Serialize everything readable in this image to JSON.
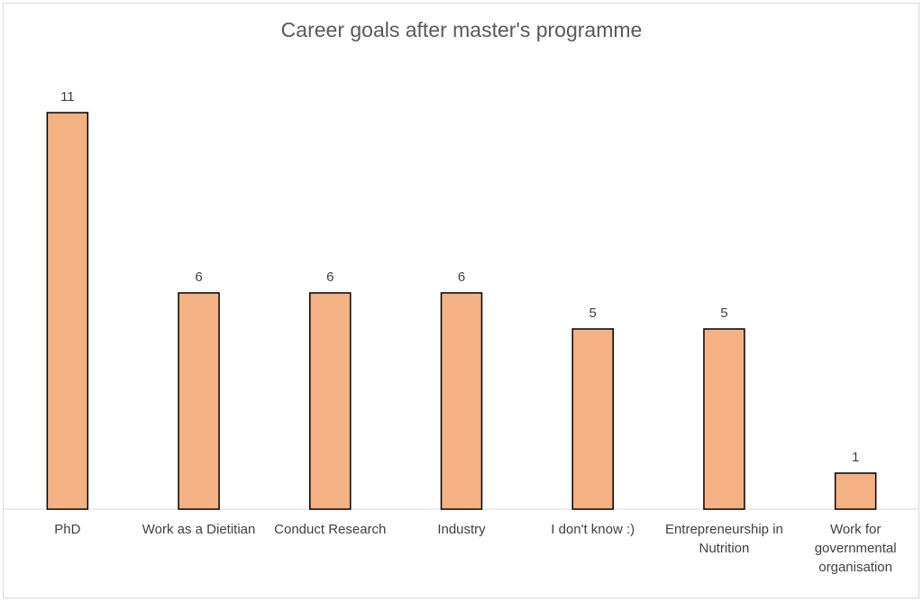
{
  "chart_data": {
    "type": "bar",
    "title": "Career goals after master's programme",
    "categories": [
      "PhD",
      "Work as a Dietitian",
      "Conduct Research",
      "Industry",
      "I don't know :)",
      "Entrepreneurship in Nutrition",
      "Work for governmental organisation"
    ],
    "values": [
      11,
      6,
      6,
      6,
      5,
      5,
      1
    ],
    "color": "#f4b183"
  }
}
